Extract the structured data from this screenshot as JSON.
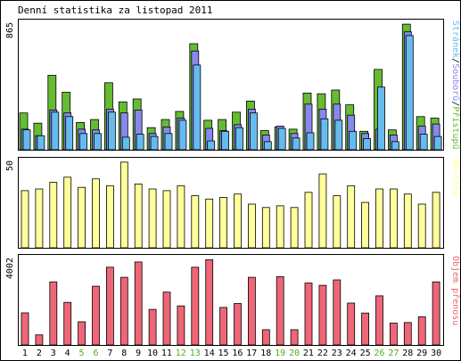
{
  "title": "Denní statistika za listopad 2011",
  "colors": {
    "background": "#ffffff",
    "frame": "#000000",
    "hits": "#66bb33",
    "files": "#8888ee",
    "pages": "#66bbee",
    "visits": "#ffff99",
    "volume": "#ee6677",
    "weekend_label": "#55aa22",
    "weekday_label": "#000000"
  },
  "chart_data": [
    {
      "type": "bar",
      "panel": "top",
      "ymax_label": "865",
      "ylim": [
        0,
        865
      ],
      "categories": [
        "1",
        "2",
        "3",
        "4",
        "5",
        "6",
        "7",
        "8",
        "9",
        "10",
        "11",
        "12",
        "13",
        "14",
        "15",
        "16",
        "17",
        "18",
        "19",
        "20",
        "21",
        "22",
        "23",
        "24",
        "25",
        "26",
        "27",
        "28",
        "29",
        "30"
      ],
      "weekend_days": [
        "5",
        "6",
        "12",
        "13",
        "19",
        "20",
        "26",
        "27"
      ],
      "legend": [
        "Stránek",
        "Souborů",
        "Přístupů"
      ],
      "series": [
        {
          "name": "Přístupů",
          "color_key": "hits",
          "values": [
            250,
            180,
            505,
            390,
            185,
            205,
            455,
            325,
            345,
            150,
            205,
            260,
            720,
            200,
            205,
            255,
            330,
            130,
            155,
            140,
            385,
            380,
            405,
            305,
            125,
            545,
            135,
            852,
            225,
            215
          ]
        },
        {
          "name": "Souborů",
          "color_key": "files",
          "values": [
            140,
            95,
            270,
            250,
            140,
            135,
            275,
            250,
            270,
            110,
            155,
            215,
            670,
            145,
            130,
            170,
            275,
            100,
            160,
            110,
            310,
            275,
            310,
            235,
            110,
            140,
            100,
            800,
            160,
            175
          ]
        },
        {
          "name": "Stránek",
          "color_key": "pages",
          "values": [
            135,
            95,
            255,
            225,
            110,
            110,
            255,
            85,
            105,
            90,
            110,
            200,
            575,
            60,
            125,
            150,
            250,
            55,
            145,
            80,
            115,
            210,
            200,
            125,
            75,
            425,
            55,
            775,
            105,
            90
          ]
        }
      ]
    },
    {
      "type": "bar",
      "panel": "middle",
      "ymax_label": "50",
      "ylim": [
        0,
        52
      ],
      "categories": [
        "1",
        "2",
        "3",
        "4",
        "5",
        "6",
        "7",
        "8",
        "9",
        "10",
        "11",
        "12",
        "13",
        "14",
        "15",
        "16",
        "17",
        "18",
        "19",
        "20",
        "21",
        "22",
        "23",
        "24",
        "25",
        "26",
        "27",
        "28",
        "29",
        "30"
      ],
      "legend": [
        "Návštěv"
      ],
      "series": [
        {
          "name": "Návštěv",
          "color_key": "visits",
          "values": [
            34,
            35,
            39,
            42,
            36,
            41,
            37,
            51,
            38,
            35,
            34,
            37,
            31,
            29,
            30,
            32,
            26,
            24,
            25,
            24,
            33,
            44,
            31,
            37,
            27,
            35,
            35,
            32,
            26,
            33
          ]
        }
      ]
    },
    {
      "type": "bar",
      "panel": "bottom",
      "ymax_label": "4002",
      "ylim": [
        0,
        4002
      ],
      "categories": [
        "1",
        "2",
        "3",
        "4",
        "5",
        "6",
        "7",
        "8",
        "9",
        "10",
        "11",
        "12",
        "13",
        "14",
        "15",
        "16",
        "17",
        "18",
        "19",
        "20",
        "21",
        "22",
        "23",
        "24",
        "25",
        "26",
        "27",
        "28",
        "29",
        "30"
      ],
      "legend": [
        "Objem přenosu"
      ],
      "series": [
        {
          "name": "Objem přenosu",
          "color_key": "volume",
          "values": [
            1470,
            460,
            2890,
            1950,
            1060,
            2690,
            3560,
            3100,
            3800,
            1630,
            2420,
            1790,
            3560,
            3910,
            1720,
            1900,
            3100,
            700,
            3130,
            700,
            2840,
            2730,
            2980,
            1920,
            1460,
            2250,
            1000,
            1030,
            1290,
            2890
          ]
        }
      ]
    }
  ]
}
